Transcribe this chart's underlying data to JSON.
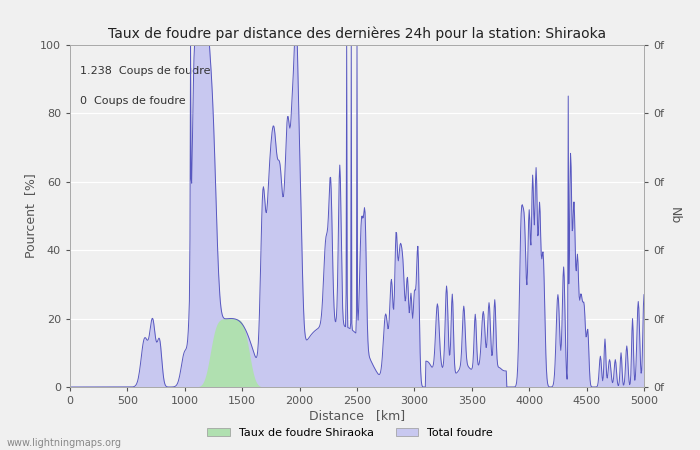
{
  "title": "Taux de foudre par distance des dernières 24h pour la station: Shiraoka",
  "xlabel": "Distance   [km]",
  "ylabel_left": "Pourcent  [%]",
  "ylabel_right": "Nb",
  "annotation1": "1.238  Coups de foudre",
  "annotation2": "0  Coups de foudre",
  "legend_label1": "Taux de foudre Shiraoka",
  "legend_label2": "Total foudre",
  "footer": "www.lightningmaps.org",
  "xlim": [
    0,
    5000
  ],
  "ylim": [
    0,
    100
  ],
  "color_total": "#c8c8f0",
  "color_station": "#b0e0b0",
  "line_color": "#5858c0",
  "bg_color": "#f0f0f0",
  "right_ytick_labels": [
    "0f",
    "0f",
    "0f",
    "0f",
    "0f",
    "0f"
  ]
}
